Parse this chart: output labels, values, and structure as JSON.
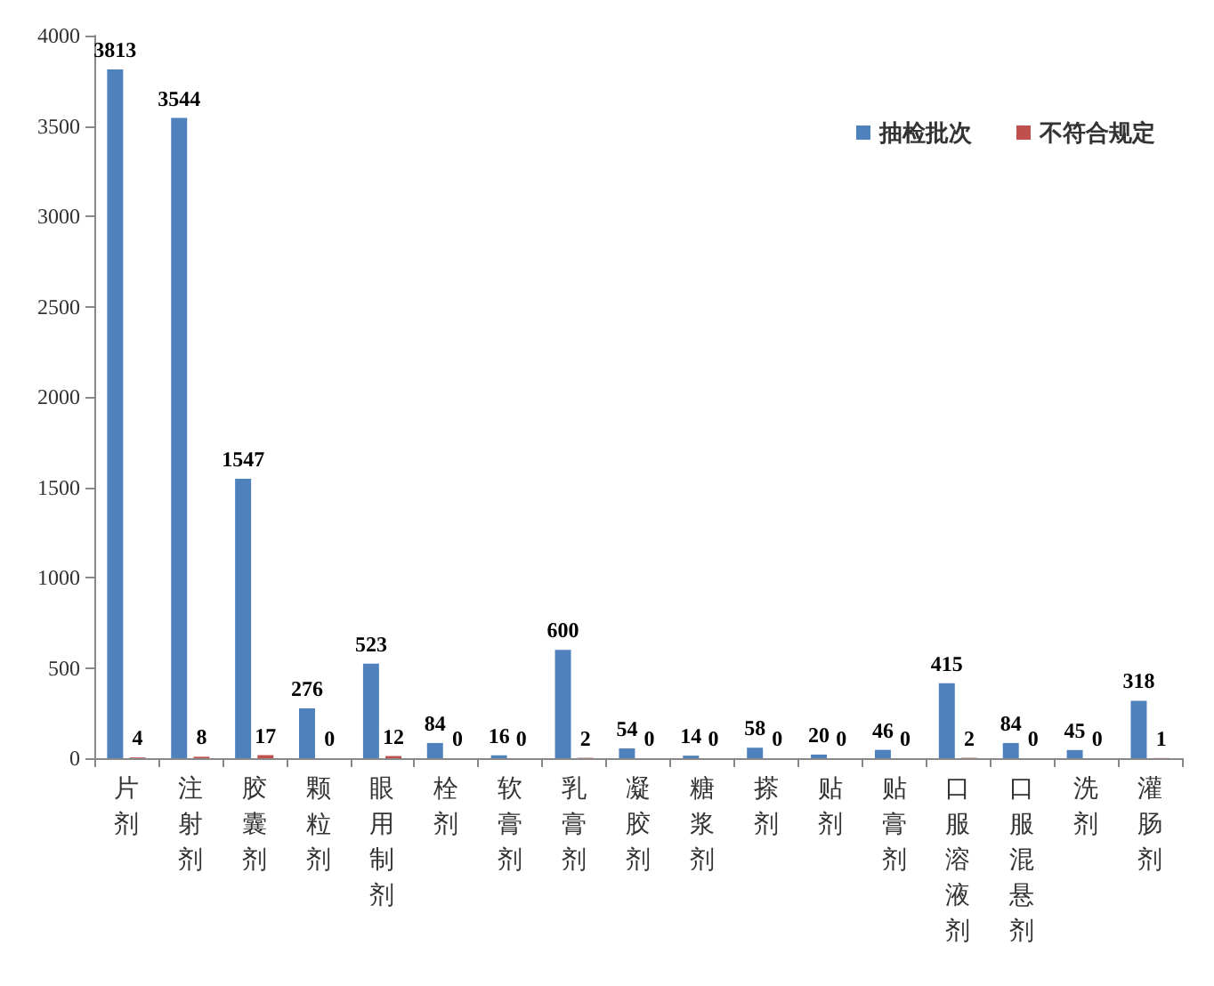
{
  "chart_data": {
    "type": "bar",
    "categories": [
      "片剂",
      "注射剂",
      "胶囊剂",
      "颗粒剂",
      "眼用制剂",
      "栓剂",
      "软膏剂",
      "乳膏剂",
      "凝胶剂",
      "糖浆剂",
      "搽剂",
      "贴剂",
      "贴膏剂",
      "口服溶液剂",
      "口服混悬剂",
      "洗剂",
      "灌肠剂"
    ],
    "series": [
      {
        "name": "抽检批次",
        "color": "#4f81bd",
        "values": [
          3813,
          3544,
          1547,
          276,
          523,
          84,
          16,
          600,
          54,
          14,
          58,
          20,
          46,
          415,
          84,
          45,
          318
        ]
      },
      {
        "name": "不符合规定",
        "color": "#c0504d",
        "values": [
          4,
          8,
          17,
          0,
          12,
          0,
          0,
          2,
          0,
          0,
          0,
          0,
          0,
          2,
          0,
          0,
          1
        ]
      }
    ],
    "ylim": [
      0,
      4000
    ],
    "yticks": [
      0,
      500,
      1000,
      1500,
      2000,
      2500,
      3000,
      3500,
      4000
    ],
    "grid": false,
    "legend": "top right",
    "data_labels": true
  }
}
